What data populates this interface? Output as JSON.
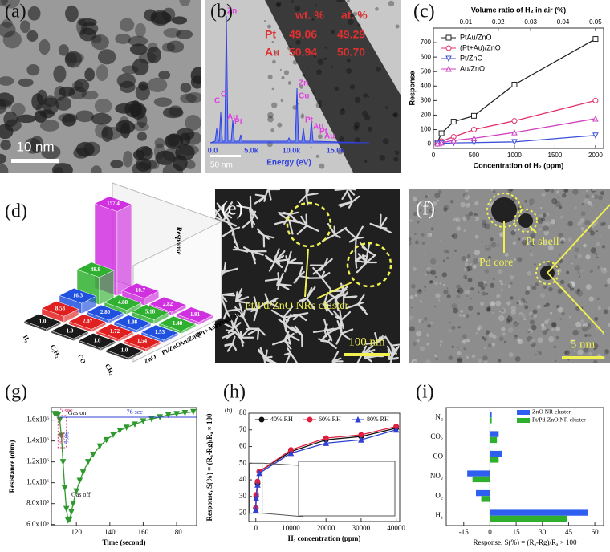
{
  "panel_labels": [
    "(a)",
    "(b)",
    "(c)",
    "(d)",
    "(e)",
    "(f)",
    "(g)",
    "(h)",
    "(i)"
  ],
  "images": {
    "a": {
      "scale_bar": "10 nm"
    },
    "b": {
      "headers": [
        "wt. %",
        "at. %"
      ],
      "rows": [
        [
          "Pt",
          "49.06",
          "49.29"
        ],
        [
          "Au",
          "50.94",
          "50.70"
        ]
      ],
      "peaks": [
        "Zn",
        "C",
        "C",
        "Au",
        "Pt",
        "Zn",
        "Cu",
        "Pt",
        "Au",
        "Pt",
        "Au"
      ],
      "spectrum_ticks": [
        "0.0",
        "5.0k",
        "10.0k",
        "15.0k"
      ],
      "spectrum_axis": "Energy (eV)",
      "scale_bar": "50 nm"
    },
    "e": {
      "annotation": "Pt/Pd/ZnO NRs cluster",
      "scale_bar": "100 nm"
    },
    "f": {
      "annotations": [
        "Pt shell",
        "Pd core"
      ],
      "scale_bar": "5 nm"
    }
  },
  "chart_data": [
    {
      "type": "line",
      "xlabel": "Concentration of H₂ (ppm)",
      "ylabel": "Response",
      "x2label": "Volume ratio of H₂ in air (%)",
      "x": [
        50,
        100,
        250,
        500,
        1000,
        2000
      ],
      "series": [
        {
          "name": "PtAu/ZnO",
          "color": "#222222",
          "marker": "square",
          "values": [
            10,
            75,
            155,
            195,
            410,
            725
          ]
        },
        {
          "name": "(Pt+Au)/ZnO",
          "color": "#e0306a",
          "marker": "circle",
          "values": [
            5,
            20,
            50,
            100,
            160,
            300
          ]
        },
        {
          "name": "Pt/ZnO",
          "color": "#3b4fd8",
          "marker": "triangle-down",
          "values": [
            2,
            5,
            8,
            10,
            15,
            60
          ]
        },
        {
          "name": "Au/ZnO",
          "color": "#d040c0",
          "marker": "triangle-up",
          "values": [
            3,
            10,
            25,
            40,
            80,
            175
          ]
        }
      ],
      "open_markers": true,
      "xlim": [
        0,
        2100
      ],
      "xticks": [
        0,
        500,
        1000,
        1500,
        2000
      ],
      "ylim": [
        -30,
        800
      ],
      "yticks": [
        0,
        100,
        200,
        300,
        400,
        500,
        600,
        700
      ],
      "x2lim": [
        0,
        0.0525
      ],
      "x2ticks": [
        0.01,
        0.02,
        0.03,
        0.04,
        0.05
      ],
      "legend": "upper left"
    },
    {
      "type": "bar3d",
      "zlabel": "Response",
      "categories": [
        "H₂",
        "C₂H₂",
        "CO",
        "CH₄"
      ],
      "series": [
        {
          "name": "ZnO",
          "color": "#1a1a1a",
          "values": [
            1.0,
            1.0,
            1.0,
            1.0
          ],
          "value_labels": [
            "1.0",
            "1.0",
            "1.0",
            "1.0"
          ]
        },
        {
          "name": "Pt/ZnO",
          "color": "#e02020",
          "values": [
            8.53,
            2.07,
            1.72,
            1.54
          ],
          "value_labels": [
            "8.53",
            "2.07",
            "1.72",
            "1.54"
          ]
        },
        {
          "name": "Au/ZnO",
          "color": "#2050e0",
          "values": [
            16.3,
            2.8,
            1.98,
            1.53
          ],
          "value_labels": [
            "16.3",
            "2.80",
            "1.98",
            "1.53"
          ]
        },
        {
          "name": "(Pt+Au)/ZnO",
          "color": "#30b030",
          "values": [
            48.9,
            4.88,
            5.18,
            1.48
          ],
          "value_labels": [
            "48.9",
            "4.88",
            "5.18",
            "1.48"
          ]
        },
        {
          "name": "PtAu/ZnO",
          "color": "#d030e0",
          "values": [
            157.4,
            10.7,
            2.82,
            1.91
          ],
          "value_labels": [
            "157.4",
            "10.7",
            "2.82",
            "1.91"
          ]
        }
      ],
      "zlim": [
        0,
        160
      ]
    },
    {
      "type": "line",
      "xlabel": "Time (second)",
      "ylabel": "Resistance (ohm)",
      "x": [
        107,
        108,
        109,
        110,
        111,
        112,
        113,
        114,
        115,
        116,
        117,
        118,
        120,
        122,
        124,
        127,
        130,
        134,
        138,
        142,
        146,
        150,
        155,
        160,
        165,
        170,
        175,
        180,
        185,
        190
      ],
      "values": [
        1660000,
        1660000,
        1650000,
        1600000,
        1450000,
        1200000,
        950000,
        750000,
        640000,
        650000,
        720000,
        800000,
        920000,
        1020000,
        1100000,
        1200000,
        1270000,
        1350000,
        1410000,
        1460000,
        1500000,
        1530000,
        1560000,
        1590000,
        1610000,
        1630000,
        1650000,
        1660000,
        1670000,
        1680000
      ],
      "color": "#2e9a2e",
      "marker": "triangle-down",
      "annotations": [
        "5 sec",
        "90%",
        "90%",
        "Gas on",
        "Gas off",
        "76 sec"
      ],
      "xlim": [
        105,
        192
      ],
      "xticks": [
        120,
        140,
        160,
        180
      ],
      "ylim": [
        590000,
        1720000
      ],
      "yticks": [
        {
          "value": 600000,
          "label": "6.0x10⁵"
        },
        {
          "value": 800000,
          "label": "8.0x10⁵"
        },
        {
          "value": 1000000,
          "label": "1.0x10⁶"
        },
        {
          "value": 1200000,
          "label": "1.2x10⁶"
        },
        {
          "value": 1400000,
          "label": "1.4x10⁶"
        },
        {
          "value": 1600000,
          "label": "1.6x10⁶"
        }
      ]
    },
    {
      "type": "line",
      "subplot_label": "(b)",
      "xlabel": "H₂ concentration (ppm)",
      "ylabel": "Response, S(%) = (Rₐ-Rg)/Rₐ × 100",
      "x": [
        0,
        100,
        500,
        1000,
        10000,
        20000,
        30000,
        40000
      ],
      "series": [
        {
          "name": "40% RH",
          "color": "#111111",
          "marker": "circle",
          "values": [
            23,
            30,
            38,
            45,
            57,
            64,
            66,
            71
          ]
        },
        {
          "name": "60% RH",
          "color": "#e02040",
          "marker": "circle",
          "values": [
            23,
            31,
            39,
            45,
            58,
            65,
            67,
            72
          ]
        },
        {
          "name": "80% RH",
          "color": "#3040d0",
          "marker": "triangle-up",
          "values": [
            22,
            29,
            37,
            44,
            56,
            62,
            64,
            70
          ]
        }
      ],
      "xlim": [
        -2000,
        41000
      ],
      "xticks": [
        0,
        10000,
        20000,
        30000,
        40000
      ],
      "ylim": [
        15,
        80
      ],
      "yticks": [
        20,
        30,
        40,
        50,
        60,
        70,
        80
      ],
      "legend": "top"
    },
    {
      "type": "barh",
      "xlabel": "Response, S(%) = (Rₐ-Rg)/Rₐ × 100",
      "categories": [
        "H₂",
        "O₂",
        "NO₂",
        "CO",
        "CO₂",
        "N₂"
      ],
      "series": [
        {
          "name": "ZnO NR cluster",
          "color": "#2f5ff0",
          "values": [
            56,
            -8,
            -13,
            7,
            5,
            1
          ]
        },
        {
          "name": "Pt/Pd-ZnO NR cluster",
          "color": "#2eb02e",
          "values": [
            44,
            -5,
            -10,
            5,
            4,
            1
          ]
        }
      ],
      "xlim": [
        -25,
        65
      ],
      "xticks": [
        -15,
        0,
        15,
        30,
        45,
        60
      ],
      "legend": "upper right"
    }
  ]
}
